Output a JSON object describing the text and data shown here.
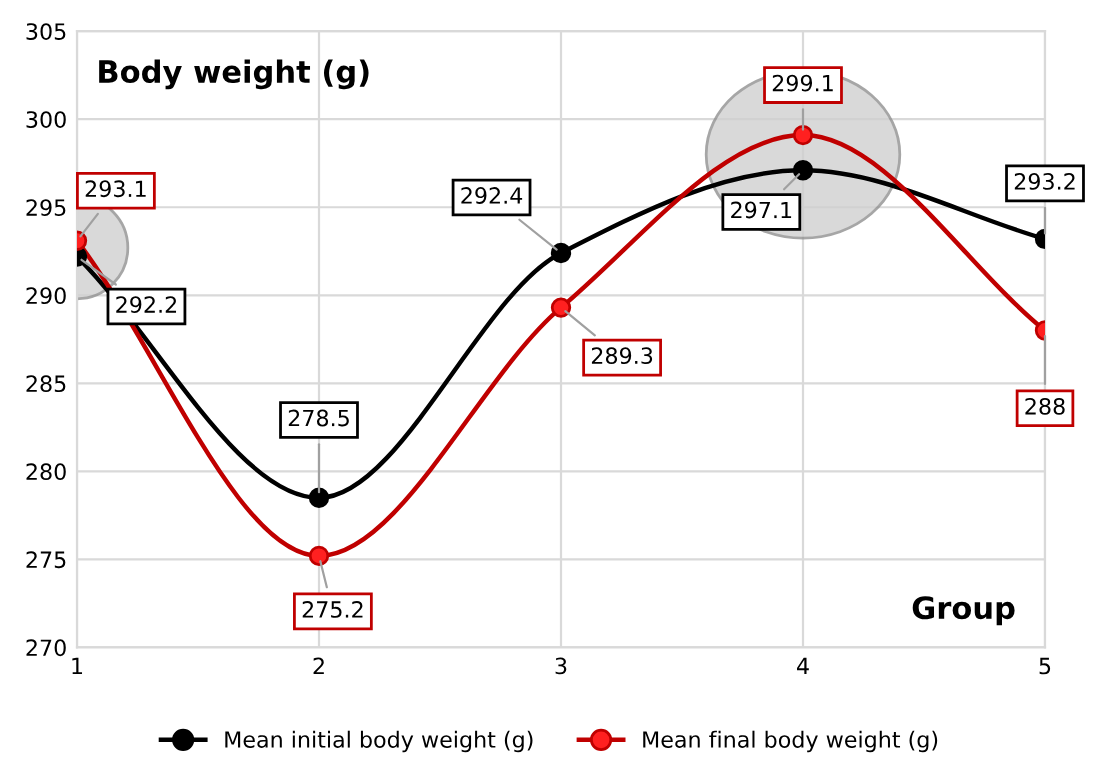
{
  "chart_data": {
    "type": "line",
    "title": "Body weight (g)",
    "xlabel": "Group",
    "x": [
      1,
      2,
      3,
      4,
      5
    ],
    "series": [
      {
        "name": "Mean initial body weight (g)",
        "color": "#000000",
        "values": [
          292.2,
          278.5,
          292.4,
          297.1,
          293.2
        ]
      },
      {
        "name": "Mean final body weight (g)",
        "color": "#c00000",
        "values": [
          293.1,
          275.2,
          289.3,
          299.1,
          288
        ]
      }
    ],
    "xlim": [
      1,
      5
    ],
    "xticks": [
      1,
      2,
      3,
      4,
      5
    ],
    "ylim": [
      270,
      305
    ],
    "yticks": [
      270,
      275,
      280,
      285,
      290,
      295,
      300,
      305
    ],
    "grid": true,
    "legend": "bottom",
    "marker": "circle",
    "line_style": "solid",
    "data_labels": true
  }
}
